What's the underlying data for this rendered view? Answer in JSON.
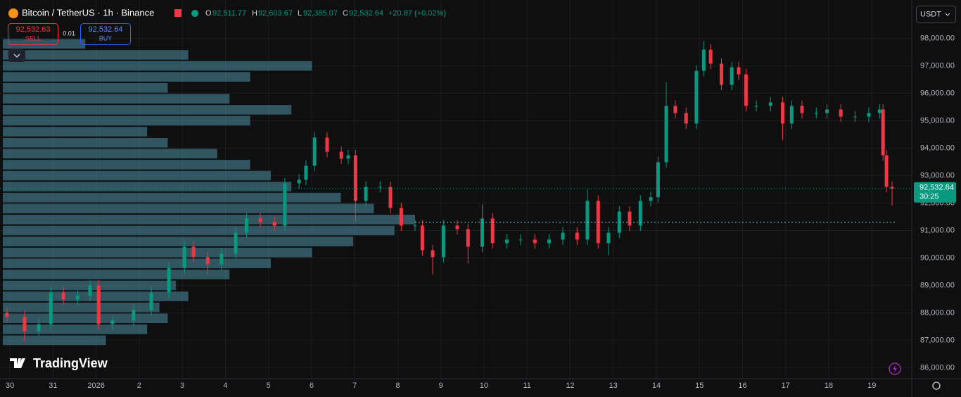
{
  "header": {
    "symbol": "Bitcoin / TetherUS · 1h · Binance",
    "ohlc": [
      {
        "key": "O",
        "value": "92,511.77"
      },
      {
        "key": "H",
        "value": "92,603.67"
      },
      {
        "key": "L",
        "value": "92,385.07"
      },
      {
        "key": "C",
        "value": "92,532.64"
      }
    ],
    "change": "+20.87 (+0.02%)"
  },
  "trade": {
    "sell_price": "92,532.63",
    "sell_label": "SELL",
    "spread": "0.01",
    "buy_price": "92,532.64",
    "buy_label": "BUY"
  },
  "currency": "USDT",
  "logo": "TradingView",
  "chart_data": {
    "type": "candlestick",
    "x": [
      -0.07,
      0.34,
      0.67,
      0.95,
      1.24,
      1.57,
      1.86,
      2.06,
      2.38,
      2.87,
      3.28,
      3.69,
      4.05,
      4.26,
      4.59,
      4.91,
      5.24,
      5.49,
      5.81,
      6.14,
      6.38,
      6.71,
      6.87,
      7.07,
      7.36,
      7.69,
      7.85,
      8.02,
      8.26,
      8.59,
      8.83,
      9.08,
      9.4,
      9.57,
      9.81,
      10.06,
      10.38,
      10.63,
      10.96,
      11.2,
      11.53,
      11.85,
      12.18,
      12.51,
      12.83,
      13.16,
      13.4,
      13.65,
      13.89,
      14.14,
      14.38,
      14.63,
      14.87,
      15.04,
      15.23,
      15.44,
      15.69,
      15.93,
      16.1,
      16.26,
      16.51,
      16.75,
      16.91,
      17.08,
      17.32,
      17.65,
      17.93,
      18.14,
      18.38,
      18.71,
      18.96,
      19.28,
      19.61,
      19.93,
      20.18,
      20.26,
      20.34,
      20.47
    ],
    "open": [
      88000,
      87850,
      87330,
      87590,
      88740,
      88490,
      88620,
      89000,
      87590,
      87720,
      88100,
      88740,
      89640,
      90410,
      90030,
      89770,
      90150,
      90920,
      91440,
      91310,
      91180,
      92720,
      92850,
      93360,
      94390,
      93870,
      93620,
      93740,
      92080,
      92590,
      92590,
      91820,
      91180,
      91180,
      90280,
      90030,
      91180,
      91050,
      90410,
      91440,
      90540,
      90670,
      90670,
      90540,
      90670,
      90920,
      90670,
      92080,
      90540,
      90920,
      91690,
      91180,
      92080,
      92210,
      93490,
      95540,
      95280,
      94900,
      96820,
      97590,
      97080,
      96310,
      96950,
      96690,
      95540,
      95540,
      95670,
      94900,
      95540,
      95280,
      95280,
      95410,
      95150,
      95150,
      95280,
      95410,
      93740,
      92590
    ],
    "high": [
      88200,
      88050,
      87790,
      88940,
      88940,
      88820,
      89200,
      89200,
      87920,
      88300,
      88940,
      89840,
      90610,
      90610,
      90230,
      90350,
      91120,
      91640,
      91640,
      91510,
      92920,
      93050,
      93560,
      94590,
      94590,
      94070,
      93940,
      93940,
      92790,
      92790,
      92790,
      92020,
      91380,
      91380,
      90480,
      91380,
      91380,
      91250,
      91950,
      91640,
      90870,
      90870,
      90870,
      90870,
      91120,
      91120,
      92500,
      92280,
      91120,
      91890,
      91890,
      92280,
      92410,
      93690,
      96400,
      95740,
      95480,
      97020,
      97900,
      97790,
      97280,
      97150,
      97150,
      96890,
      95740,
      95870,
      95870,
      95740,
      95740,
      95480,
      95610,
      95610,
      95350,
      95480,
      95610,
      95610,
      93940,
      92790
    ],
    "low": [
      87650,
      86950,
      87130,
      87390,
      88290,
      88290,
      88420,
      87390,
      87390,
      87520,
      87900,
      88540,
      89440,
      89830,
      89400,
      89570,
      89950,
      90720,
      91110,
      90980,
      90980,
      92520,
      92650,
      93160,
      93670,
      93420,
      93420,
      91300,
      91880,
      92390,
      91620,
      90980,
      90980,
      90080,
      89400,
      89830,
      90850,
      89800,
      90210,
      90340,
      90340,
      90470,
      90340,
      90340,
      90470,
      90470,
      90470,
      90340,
      90100,
      90720,
      90980,
      90980,
      91880,
      92010,
      93290,
      95080,
      94700,
      94700,
      96620,
      96880,
      96110,
      96110,
      96490,
      95340,
      95340,
      95340,
      94300,
      94700,
      95080,
      95080,
      95080,
      94950,
      94950,
      94950,
      95080,
      93540,
      92390,
      91900
    ],
    "close": [
      87850,
      87330,
      87590,
      88740,
      88490,
      88620,
      89000,
      87590,
      87720,
      88100,
      88740,
      89640,
      90410,
      90030,
      89770,
      90150,
      90920,
      91440,
      91310,
      91180,
      92720,
      92850,
      93360,
      94390,
      93870,
      93620,
      93740,
      92080,
      92590,
      92590,
      91820,
      91180,
      91180,
      90280,
      90030,
      91180,
      91050,
      90410,
      91440,
      90540,
      90670,
      90670,
      90540,
      90670,
      90920,
      90670,
      92080,
      90540,
      90920,
      91690,
      91180,
      92080,
      92210,
      93490,
      95540,
      95280,
      94900,
      96820,
      97590,
      97080,
      96310,
      96950,
      96690,
      95540,
      95540,
      95670,
      94900,
      95540,
      95280,
      95280,
      95410,
      95150,
      95150,
      95280,
      95410,
      93740,
      92590,
      92530
    ],
    "up_color": "#089981",
    "down_color": "#f23645",
    "xlim": [
      -0.23,
      20.91
    ],
    "ylim": [
      85600,
      99400
    ],
    "xticks": [
      {
        "value": 0,
        "label": "30"
      },
      {
        "value": 1,
        "label": "31"
      },
      {
        "value": 2,
        "label": "2026"
      },
      {
        "value": 3,
        "label": "2"
      },
      {
        "value": 4,
        "label": "3"
      },
      {
        "value": 5,
        "label": "4"
      },
      {
        "value": 6,
        "label": "5"
      },
      {
        "value": 7,
        "label": "6"
      },
      {
        "value": 8,
        "label": "7"
      },
      {
        "value": 9,
        "label": "8"
      },
      {
        "value": 10,
        "label": "9"
      },
      {
        "value": 11,
        "label": "10"
      },
      {
        "value": 12,
        "label": "11"
      },
      {
        "value": 13,
        "label": "12"
      },
      {
        "value": 14,
        "label": "13"
      },
      {
        "value": 15,
        "label": "14"
      },
      {
        "value": 16,
        "label": "15"
      },
      {
        "value": 17,
        "label": "16"
      },
      {
        "value": 18,
        "label": "17"
      },
      {
        "value": 19,
        "label": "18"
      },
      {
        "value": 20,
        "label": "19"
      }
    ],
    "yticks": [
      {
        "value": 86000,
        "label": "86,000.00"
      },
      {
        "value": 87000,
        "label": "87,000.00"
      },
      {
        "value": 88000,
        "label": "88,000.00"
      },
      {
        "value": 89000,
        "label": "89,000.00"
      },
      {
        "value": 90000,
        "label": "90,000.00"
      },
      {
        "value": 91000,
        "label": "91,000.00"
      },
      {
        "value": 92000,
        "label": "92,000.00"
      },
      {
        "value": 93000,
        "label": "93,000.00"
      },
      {
        "value": 94000,
        "label": "94,000.00"
      },
      {
        "value": 95000,
        "label": "95,000.00"
      },
      {
        "value": 96000,
        "label": "96,000.00"
      },
      {
        "value": 97000,
        "label": "97,000.00"
      },
      {
        "value": 98000,
        "label": "98,000.00"
      }
    ],
    "grid": true,
    "last_price": {
      "value": 92532.64,
      "label": "92,532.64",
      "countdown": "30:25",
      "color": "#089981"
    },
    "poc": 91300,
    "volume_profile": {
      "color": "#4f8fa6",
      "levels": [
        87000,
        87400,
        87800,
        88200,
        88600,
        89000,
        89400,
        89800,
        90200,
        90600,
        91000,
        91400,
        91800,
        92200,
        92600,
        93000,
        93400,
        93800,
        94200,
        94600,
        95000,
        95400,
        95800,
        96200,
        96600,
        97000,
        97400,
        97800
      ],
      "values": [
        25,
        35,
        40,
        38,
        45,
        42,
        55,
        65,
        75,
        85,
        95,
        100,
        90,
        82,
        70,
        65,
        60,
        52,
        40,
        35,
        60,
        70,
        55,
        40,
        60,
        75,
        45,
        20
      ]
    }
  }
}
